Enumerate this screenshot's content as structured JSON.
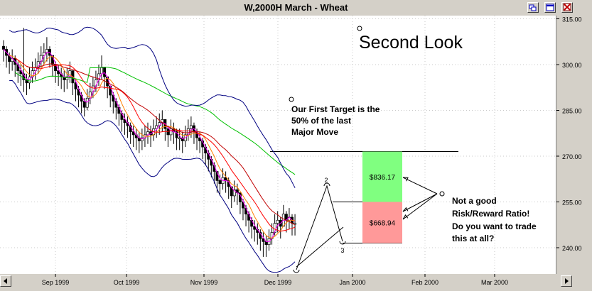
{
  "window": {
    "title": "W,2000H  March - Wheat",
    "buttons": [
      "restore-icon",
      "maximize-icon",
      "close-icon"
    ]
  },
  "chart_data": {
    "type": "candlestick",
    "title": "Second Look",
    "ylim": [
      233,
      320
    ],
    "y_ticks": [
      240,
      255,
      270,
      285,
      300,
      315
    ],
    "y_tick_labels": [
      "240.00",
      "255.00",
      "270.00",
      "285.00",
      "300.00",
      "315.00"
    ],
    "x_tick_labels": [
      "Sep 1999",
      "Oct 1999",
      "Nov 1999",
      "Dec 1999",
      "Jan 2000",
      "Feb 2000",
      "Mar 2000"
    ],
    "grid": true,
    "closes": [
      305,
      303,
      301,
      302,
      300,
      298,
      297,
      295,
      294,
      296,
      298,
      299,
      301,
      303,
      304,
      305,
      303,
      300,
      298,
      297,
      296,
      295,
      296,
      298,
      294,
      292,
      290,
      288,
      286,
      289,
      291,
      293,
      295,
      297,
      299,
      296,
      293,
      290,
      288,
      286,
      284,
      282,
      281,
      280,
      278,
      277,
      276,
      275,
      276,
      277,
      278,
      277,
      279,
      280,
      281,
      282,
      279,
      277,
      279,
      278,
      276,
      276,
      275,
      277,
      279,
      280,
      278,
      276,
      275,
      273,
      271,
      269,
      267,
      265,
      262,
      261,
      263,
      262,
      260,
      257,
      259,
      258,
      255,
      253,
      251,
      249,
      247,
      246,
      245,
      243,
      242,
      241,
      243,
      245,
      248,
      249,
      247,
      251,
      249,
      250,
      248,
      248
    ],
    "lows": [
      301,
      299,
      297,
      298,
      296,
      294,
      293,
      291,
      290,
      292,
      294,
      295,
      297,
      299,
      300,
      301,
      299,
      296,
      294,
      293,
      292,
      291,
      292,
      294,
      290,
      288,
      286,
      284,
      283,
      285,
      287,
      289,
      291,
      293,
      295,
      292,
      289,
      286,
      284,
      282,
      280,
      278,
      277,
      276,
      274,
      273,
      272,
      271,
      272,
      273,
      274,
      273,
      275,
      276,
      277,
      278,
      275,
      273,
      275,
      274,
      272,
      272,
      271,
      273,
      275,
      276,
      274,
      272,
      271,
      269,
      267,
      265,
      263,
      261,
      258,
      257,
      259,
      258,
      256,
      253,
      255,
      254,
      251,
      249,
      247,
      245,
      243,
      242,
      241,
      239,
      237,
      237,
      239,
      241,
      244,
      245,
      243,
      247,
      245,
      246,
      244,
      244
    ],
    "highs": [
      308,
      306,
      304,
      305,
      303,
      301,
      300,
      312,
      297,
      299,
      301,
      302,
      304,
      306,
      307,
      309,
      306,
      303,
      301,
      300,
      299,
      298,
      299,
      301,
      297,
      295,
      293,
      291,
      289,
      292,
      294,
      296,
      298,
      300,
      303,
      299,
      296,
      293,
      291,
      289,
      287,
      285,
      284,
      283,
      281,
      280,
      279,
      278,
      279,
      280,
      281,
      280,
      282,
      283,
      284,
      285,
      282,
      280,
      282,
      281,
      279,
      279,
      278,
      280,
      282,
      283,
      281,
      279,
      278,
      276,
      274,
      272,
      270,
      268,
      265,
      264,
      266,
      265,
      263,
      260,
      262,
      261,
      258,
      256,
      254,
      252,
      250,
      249,
      248,
      246,
      245,
      244,
      246,
      248,
      251,
      252,
      250,
      254,
      252,
      253,
      251,
      251
    ],
    "indicators": {
      "moving_averages": [
        {
          "name": "MA fast",
          "color": "#ff00ff"
        },
        {
          "name": "MA short",
          "color": "#ff8000"
        },
        {
          "name": "MA mid",
          "color": "#ff0000"
        },
        {
          "name": "MA long",
          "color": "#c00000"
        },
        {
          "name": "MA longest",
          "color": "#00c000"
        }
      ],
      "bollinger_color": "#000080"
    },
    "target_levels": {
      "target": 271.5,
      "entry": 255,
      "stop": 241.5
    },
    "boxes": [
      {
        "label": "$836.17",
        "from": 255,
        "to": 271.5,
        "color": "#80ff80"
      },
      {
        "label": "$668.94",
        "from": 241.5,
        "to": 255,
        "color": "#ff9999"
      }
    ],
    "point_labels": [
      "1",
      "2",
      "3"
    ],
    "annotations": [
      "Our First Target is the",
      "50% of the last",
      "Major Move",
      "Not a good",
      "Risk/Reward Ratio!",
      "Do you want to trade",
      "this at all?"
    ]
  }
}
